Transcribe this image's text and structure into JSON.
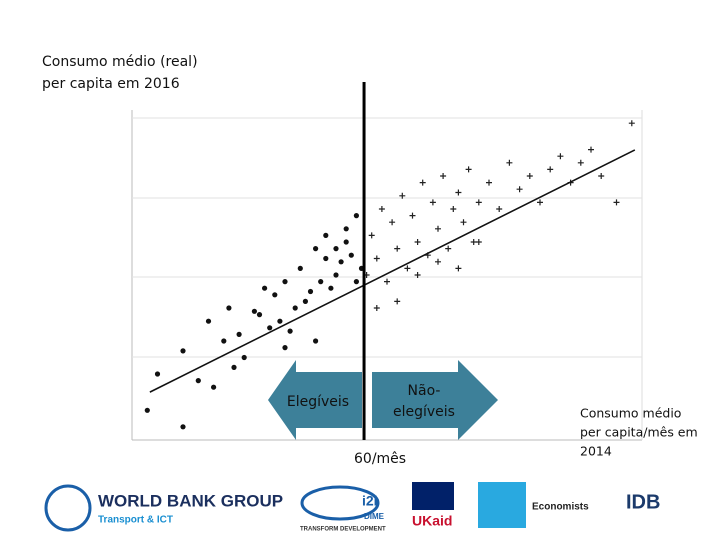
{
  "chart_data": {
    "type": "scatter",
    "y_label": [
      "Consumo médio (real)",
      "per capita em 2016"
    ],
    "x_label": [
      "Consumo médio",
      "per capita/mês em",
      "2014"
    ],
    "cutoff_label": "60/mês",
    "cutoff": 45.5,
    "left_arrow": "Elegíveis",
    "right_arrow": [
      "Não-",
      "elegíveis"
    ],
    "xlim": [
      0,
      100
    ],
    "ylim": [
      0,
      100
    ],
    "grid": true,
    "series": [
      {
        "marker": "dot",
        "color": "#111111",
        "x": [
          3,
          5,
          10,
          13,
          16,
          18,
          20,
          22,
          24,
          25,
          27,
          28,
          29,
          30,
          31,
          32,
          33,
          34,
          35,
          36,
          37,
          38,
          39,
          40,
          41,
          42,
          43,
          44,
          44,
          45,
          26,
          21,
          19,
          15,
          36,
          40,
          42,
          38,
          30,
          10
        ],
        "values": [
          9,
          20,
          27,
          18,
          16,
          30,
          22,
          25,
          39,
          38,
          34,
          44,
          36,
          48,
          33,
          40,
          52,
          42,
          45,
          58,
          48,
          62,
          46,
          50,
          54,
          60,
          56,
          48,
          68,
          52,
          46,
          32,
          40,
          36,
          30,
          58,
          64,
          55,
          28,
          4
        ]
      },
      {
        "marker": "plus",
        "color": "#222222",
        "x": [
          46,
          47,
          48,
          49,
          50,
          51,
          52,
          53,
          54,
          55,
          56,
          57,
          58,
          59,
          60,
          61,
          62,
          63,
          64,
          65,
          66,
          67,
          68,
          70,
          72,
          74,
          76,
          78,
          80,
          82,
          84,
          86,
          88,
          90,
          92,
          95,
          98,
          48,
          52,
          56,
          60,
          64,
          68
        ],
        "values": [
          50,
          62,
          55,
          70,
          48,
          66,
          58,
          74,
          52,
          68,
          60,
          78,
          56,
          72,
          64,
          80,
          58,
          70,
          75,
          66,
          82,
          60,
          72,
          78,
          70,
          84,
          76,
          80,
          72,
          82,
          86,
          78,
          84,
          88,
          80,
          72,
          96,
          40,
          42,
          50,
          54,
          52,
          60
        ]
      }
    ],
    "fit_line": {
      "x": [
        3.5,
        98.6
      ],
      "values": [
        14.5,
        87.9
      ]
    },
    "logos": [
      "WORLD BANK GROUP",
      "Transport & ICT",
      "i2i",
      "DIME",
      "TRANSFORM DEVELOPMENT",
      "UKaid",
      "Economists",
      "IDB"
    ]
  }
}
